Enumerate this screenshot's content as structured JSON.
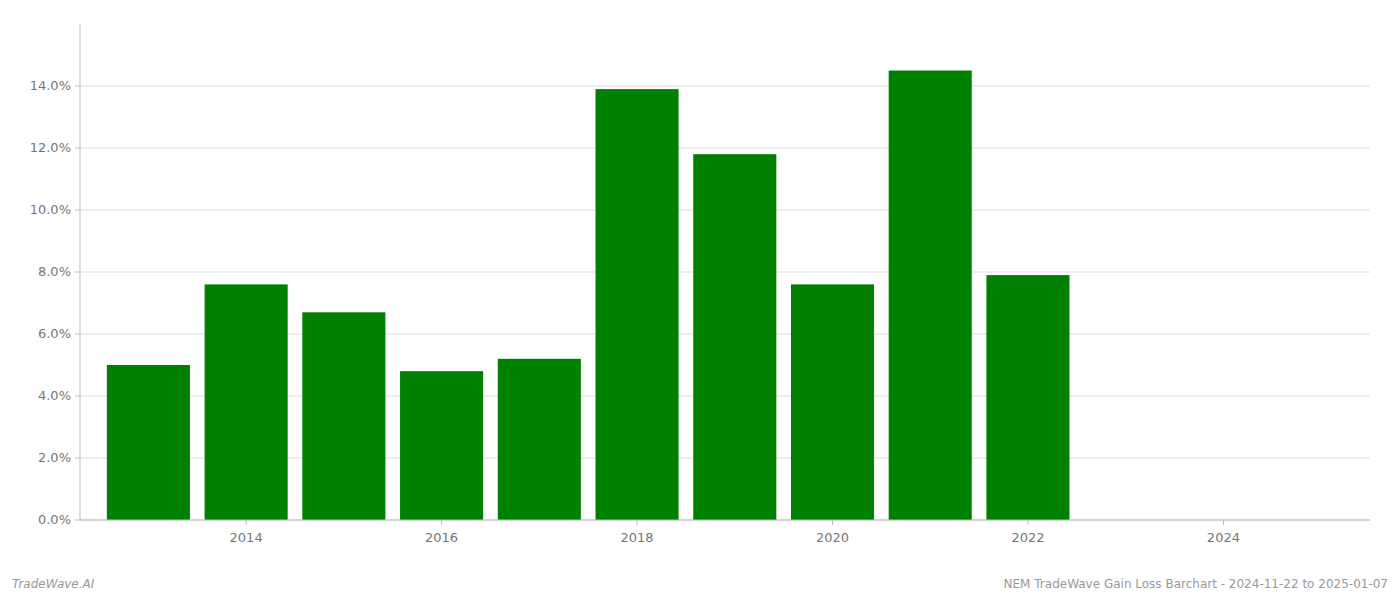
{
  "chart_data": {
    "type": "bar",
    "x": [
      2013,
      2014,
      2015,
      2016,
      2017,
      2018,
      2019,
      2020,
      2021,
      2022
    ],
    "values": [
      0.05,
      0.076,
      0.067,
      0.048,
      0.052,
      0.139,
      0.118,
      0.076,
      0.145,
      0.079
    ],
    "color": "#008000",
    "xlim": [
      2012.3,
      2025.5
    ],
    "xticks": [
      2014,
      2016,
      2018,
      2020,
      2022,
      2024
    ],
    "ylim": [
      0,
      0.16
    ],
    "yticks": [
      {
        "value": 0.0,
        "label": "0.0%"
      },
      {
        "value": 0.02,
        "label": "2.0%"
      },
      {
        "value": 0.04,
        "label": "4.0%"
      },
      {
        "value": 0.06,
        "label": "6.0%"
      },
      {
        "value": 0.08,
        "label": "8.0%"
      },
      {
        "value": 0.1,
        "label": "10.0%"
      },
      {
        "value": 0.12,
        "label": "12.0%"
      },
      {
        "value": 0.14,
        "label": "14.0%"
      }
    ],
    "grid": true,
    "annotations": [
      "TradeWave.AI",
      "NEM TradeWave Gain Loss Barchart - 2024-11-22 to 2025-01-07"
    ]
  }
}
